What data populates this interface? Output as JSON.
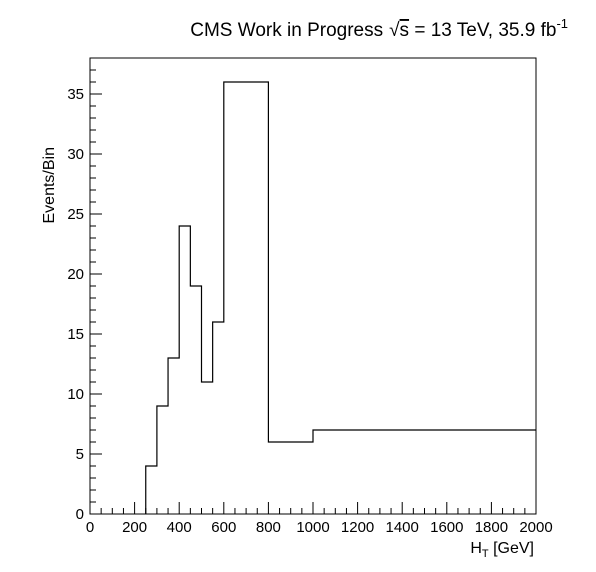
{
  "chart_data": {
    "type": "histogram",
    "title": {
      "prefix": "CMS Work in Progress",
      "sqrt_symbol": "√",
      "sqrt_arg": "s",
      "middle": " = 13 TeV, 35.9 fb",
      "superscript": "-1"
    },
    "xlabel": {
      "main": "H",
      "sub": "T",
      "suffix": " [GeV]"
    },
    "ylabel": "Events/Bin",
    "xlim": [
      0,
      2000
    ],
    "ylim": [
      0,
      38
    ],
    "x_ticks": [
      0,
      200,
      400,
      600,
      800,
      1000,
      1200,
      1400,
      1600,
      1800,
      2000
    ],
    "y_ticks": [
      0,
      5,
      10,
      15,
      20,
      25,
      30,
      35
    ],
    "bin_edges": [
      250,
      300,
      350,
      400,
      450,
      500,
      550,
      600,
      800,
      1000,
      2000
    ],
    "values": [
      4,
      9,
      13,
      24,
      19,
      11,
      16,
      36,
      6,
      7
    ],
    "line_color": "#000000",
    "grid": false,
    "legend": "none"
  }
}
